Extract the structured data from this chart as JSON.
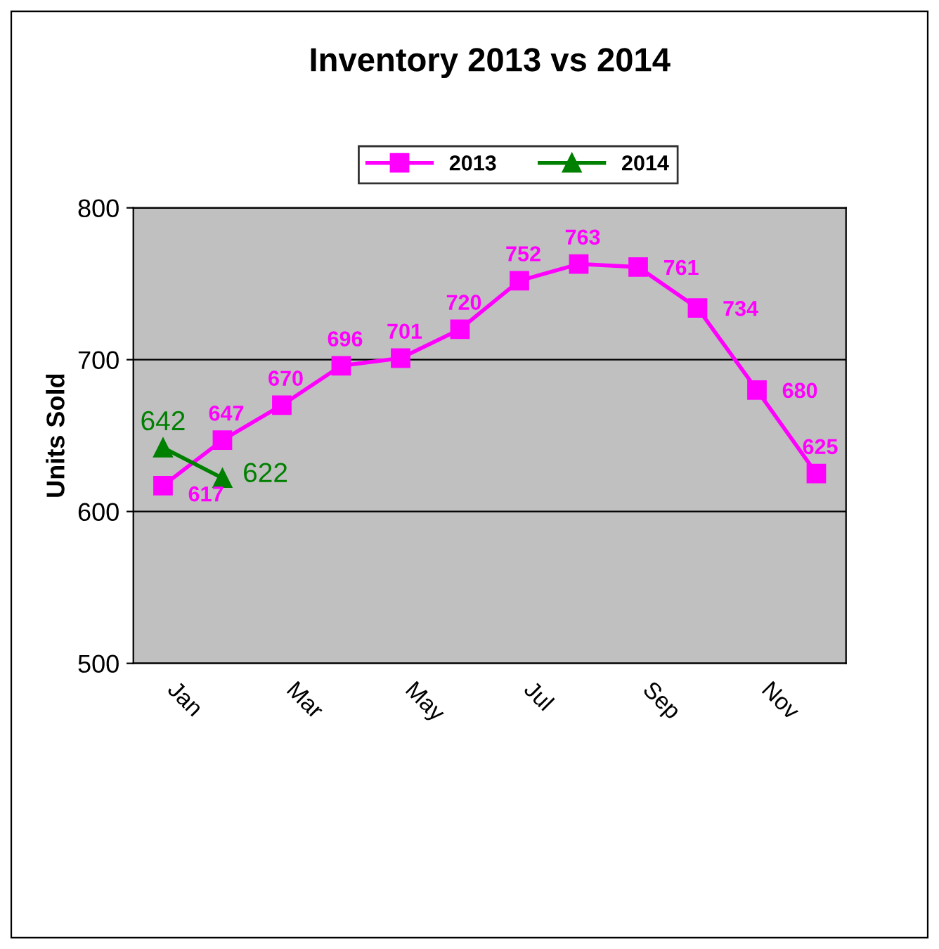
{
  "chart_data": {
    "type": "line",
    "title": "Inventory 2013 vs 2014",
    "ylabel": "Units Sold",
    "categories": [
      "Jan",
      null,
      "Mar",
      null,
      "May",
      null,
      "Jul",
      null,
      "Sep",
      null,
      "Nov",
      null
    ],
    "series": [
      {
        "name": "2013",
        "color": "#ff00ff",
        "marker": "square",
        "values": [
          617,
          647,
          670,
          696,
          701,
          720,
          752,
          763,
          761,
          734,
          680,
          625
        ]
      },
      {
        "name": "2014",
        "color": "#008000",
        "marker": "triangle",
        "values": [
          642,
          622,
          null,
          null,
          null,
          null,
          null,
          null,
          null,
          null,
          null,
          null
        ]
      }
    ],
    "ylim": [
      500,
      800
    ],
    "yticks": [
      500,
      600,
      700,
      800
    ],
    "grid": "y",
    "legend": "top",
    "data_labels": true,
    "line_style": "solid"
  }
}
